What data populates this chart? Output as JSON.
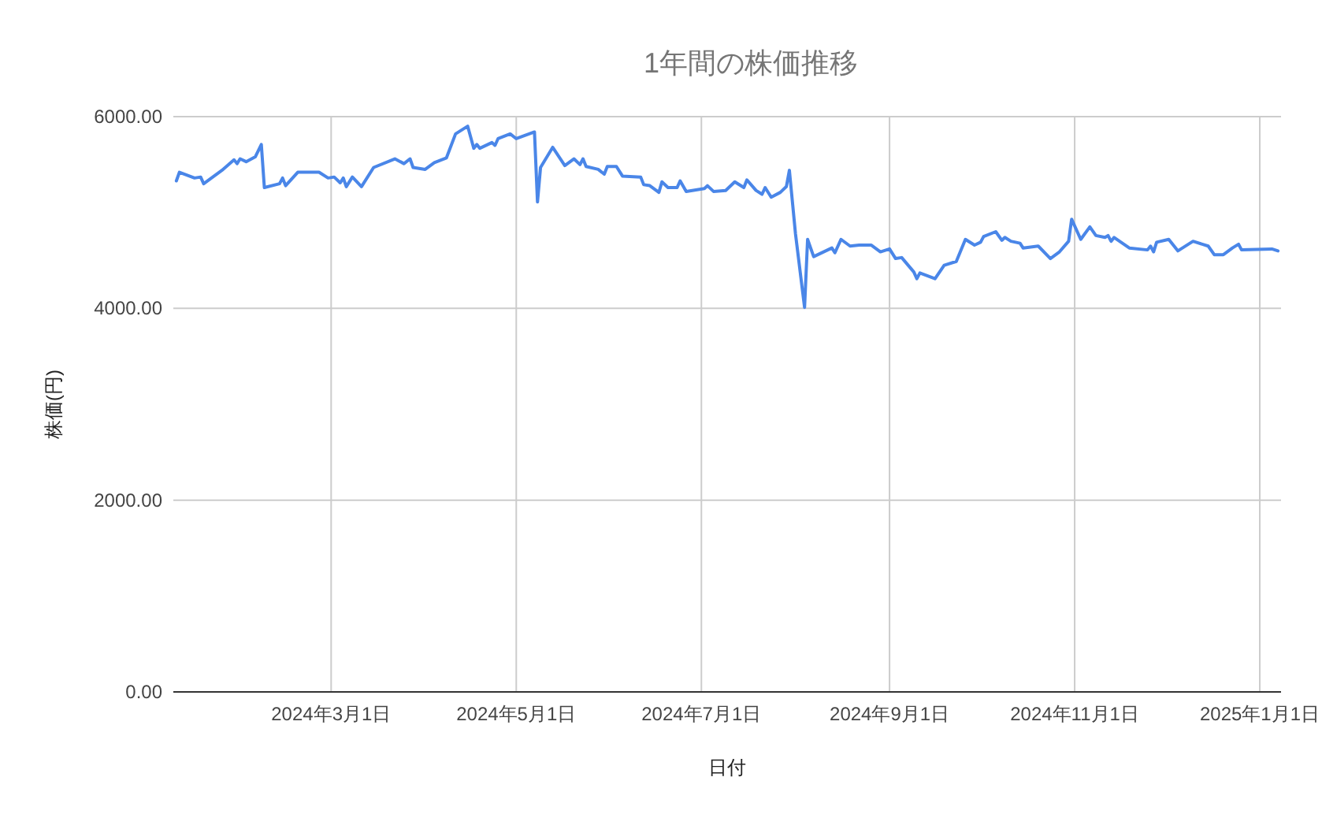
{
  "chart_data": {
    "type": "line",
    "title": "1年間の株価推移",
    "xlabel": "日付",
    "ylabel": "株価(円)",
    "xlim": [
      "2024-01-09",
      "2025-01-08"
    ],
    "xticks": [
      {
        "value": "2024-03-01",
        "label": "2024年3月1日"
      },
      {
        "value": "2024-05-01",
        "label": "2024年5月1日"
      },
      {
        "value": "2024-07-01",
        "label": "2024年7月1日"
      },
      {
        "value": "2024-09-01",
        "label": "2024年9月1日"
      },
      {
        "value": "2024-11-01",
        "label": "2024年11月1日"
      },
      {
        "value": "2025-01-01",
        "label": "2025年1月1日"
      }
    ],
    "ylim": [
      0,
      6000
    ],
    "yticks": [
      {
        "value": 0,
        "label": "0.00"
      },
      {
        "value": 2000,
        "label": "2000.00"
      },
      {
        "value": 4000,
        "label": "4000.00"
      },
      {
        "value": 6000,
        "label": "6000.00"
      }
    ],
    "grid": true,
    "marker": "none",
    "line_style": "solid",
    "series": [
      {
        "color": "#4a86e8",
        "x": [
          "2024-01-10",
          "2024-01-11",
          "2024-01-16",
          "2024-01-18",
          "2024-01-19",
          "2024-01-25",
          "2024-01-29",
          "2024-01-30",
          "2024-01-31",
          "2024-02-02",
          "2024-02-05",
          "2024-02-07",
          "2024-02-08",
          "2024-02-13",
          "2024-02-14",
          "2024-02-15",
          "2024-02-19",
          "2024-02-26",
          "2024-02-29",
          "2024-03-02",
          "2024-03-04",
          "2024-03-05",
          "2024-03-06",
          "2024-03-08",
          "2024-03-11",
          "2024-03-15",
          "2024-03-22",
          "2024-03-25",
          "2024-03-27",
          "2024-03-28",
          "2024-04-01",
          "2024-04-04",
          "2024-04-08",
          "2024-04-11",
          "2024-04-15",
          "2024-04-17",
          "2024-04-18",
          "2024-04-19",
          "2024-04-23",
          "2024-04-24",
          "2024-04-25",
          "2024-04-29",
          "2024-05-01",
          "2024-05-07",
          "2024-05-08",
          "2024-05-09",
          "2024-05-13",
          "2024-05-17",
          "2024-05-20",
          "2024-05-22",
          "2024-05-23",
          "2024-05-24",
          "2024-05-28",
          "2024-05-30",
          "2024-05-31",
          "2024-06-03",
          "2024-06-05",
          "2024-06-11",
          "2024-06-12",
          "2024-06-14",
          "2024-06-17",
          "2024-06-18",
          "2024-06-20",
          "2024-06-23",
          "2024-06-24",
          "2024-06-26",
          "2024-07-02",
          "2024-07-03",
          "2024-07-05",
          "2024-07-09",
          "2024-07-12",
          "2024-07-15",
          "2024-07-16",
          "2024-07-19",
          "2024-07-21",
          "2024-07-22",
          "2024-07-24",
          "2024-07-27",
          "2024-07-29",
          "2024-07-30",
          "2024-08-01",
          "2024-08-04",
          "2024-08-05",
          "2024-08-07",
          "2024-08-13",
          "2024-08-14",
          "2024-08-16",
          "2024-08-19",
          "2024-08-22",
          "2024-08-26",
          "2024-08-29",
          "2024-09-01",
          "2024-09-03",
          "2024-09-05",
          "2024-09-09",
          "2024-09-10",
          "2024-09-11",
          "2024-09-16",
          "2024-09-19",
          "2024-09-23",
          "2024-09-26",
          "2024-09-29",
          "2024-10-01",
          "2024-10-02",
          "2024-10-06",
          "2024-10-08",
          "2024-10-09",
          "2024-10-11",
          "2024-10-14",
          "2024-10-15",
          "2024-10-20",
          "2024-10-24",
          "2024-10-27",
          "2024-10-30",
          "2024-10-31",
          "2024-11-03",
          "2024-11-06",
          "2024-11-08",
          "2024-11-11",
          "2024-11-12",
          "2024-11-13",
          "2024-11-14",
          "2024-11-19",
          "2024-11-25",
          "2024-11-26",
          "2024-11-27",
          "2024-11-28",
          "2024-12-02",
          "2024-12-05",
          "2024-12-10",
          "2024-12-15",
          "2024-12-17",
          "2024-12-20",
          "2024-12-23",
          "2024-12-25",
          "2024-12-26",
          "2025-01-05",
          "2025-01-07"
        ],
        "values": [
          5330,
          5420,
          5360,
          5370,
          5300,
          5440,
          5550,
          5510,
          5560,
          5530,
          5580,
          5710,
          5260,
          5300,
          5360,
          5280,
          5420,
          5420,
          5360,
          5370,
          5310,
          5360,
          5270,
          5370,
          5270,
          5470,
          5560,
          5510,
          5560,
          5470,
          5450,
          5520,
          5570,
          5820,
          5900,
          5670,
          5710,
          5670,
          5730,
          5700,
          5770,
          5820,
          5770,
          5840,
          5110,
          5470,
          5680,
          5490,
          5560,
          5500,
          5560,
          5480,
          5450,
          5400,
          5480,
          5480,
          5380,
          5370,
          5290,
          5280,
          5210,
          5320,
          5260,
          5260,
          5330,
          5220,
          5250,
          5280,
          5220,
          5230,
          5320,
          5260,
          5340,
          5230,
          5190,
          5260,
          5160,
          5210,
          5270,
          5440,
          4780,
          4010,
          4720,
          4540,
          4630,
          4580,
          4720,
          4650,
          4660,
          4660,
          4590,
          4620,
          4520,
          4530,
          4380,
          4310,
          4370,
          4310,
          4450,
          4490,
          4720,
          4660,
          4690,
          4750,
          4800,
          4710,
          4740,
          4700,
          4680,
          4630,
          4650,
          4520,
          4590,
          4700,
          4930,
          4720,
          4850,
          4760,
          4740,
          4760,
          4700,
          4740,
          4630,
          4610,
          4650,
          4590,
          4690,
          4720,
          4600,
          4700,
          4650,
          4560,
          4560,
          4630,
          4670,
          4610,
          4620,
          4600
        ]
      }
    ]
  }
}
